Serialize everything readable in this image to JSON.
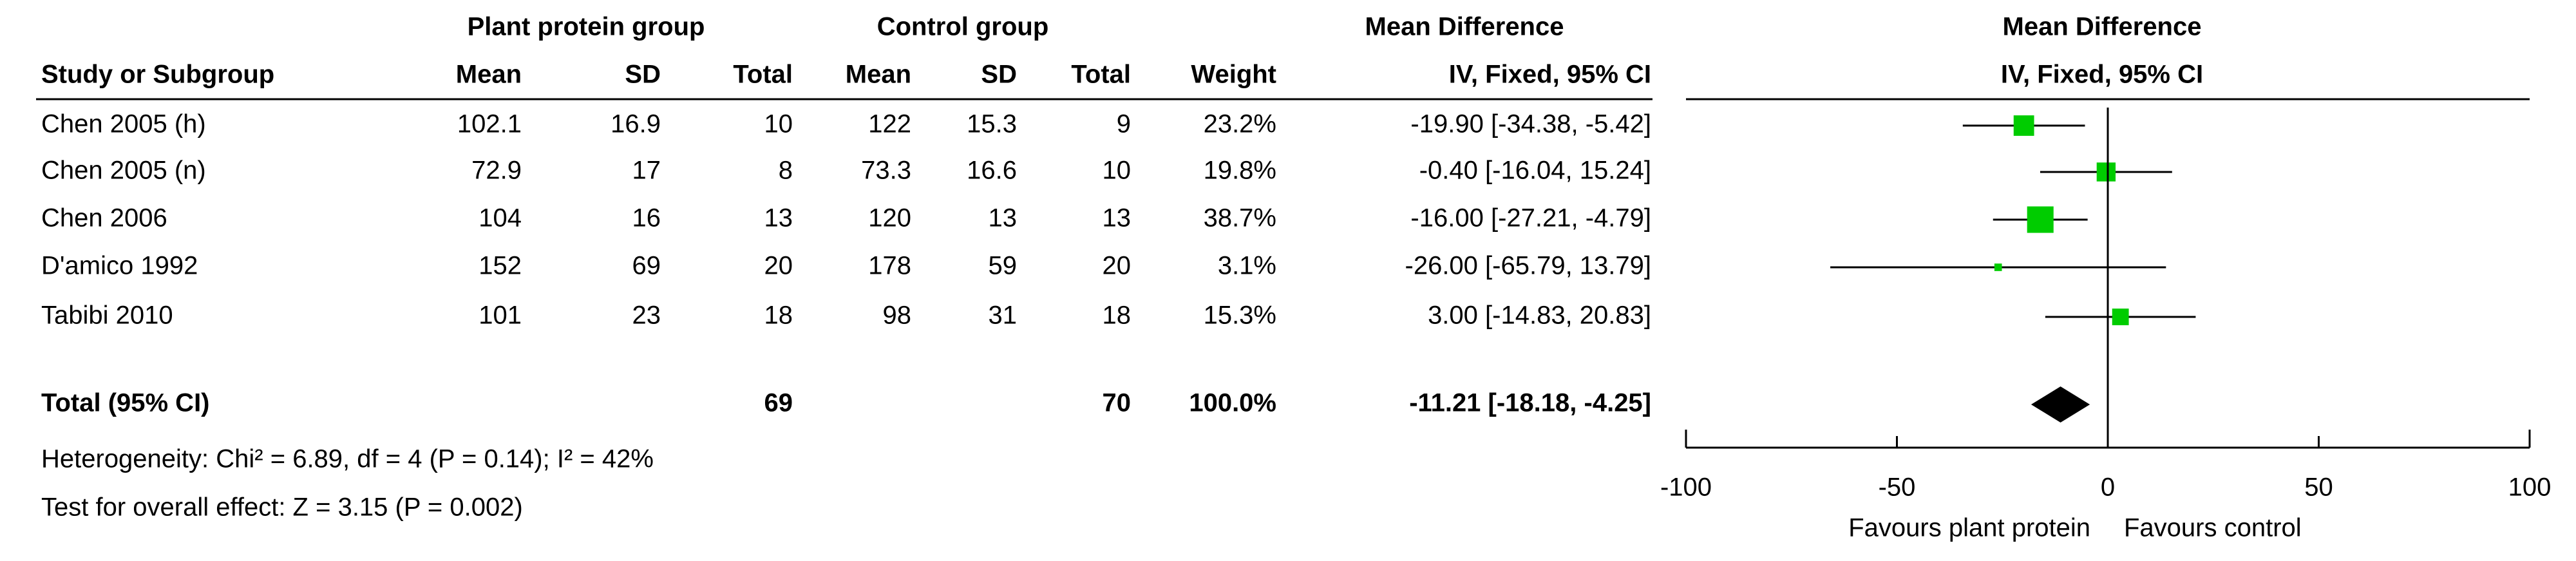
{
  "chart_data": {
    "type": "forest",
    "group_headers": {
      "experimental": "Plant protein group",
      "control": "Control group",
      "table_effect": "Mean Difference",
      "plot_effect": "Mean Difference"
    },
    "column_headers": [
      "Study or Subgroup",
      "Mean",
      "SD",
      "Total",
      "Mean",
      "SD",
      "Total",
      "Weight",
      "IV, Fixed, 95% CI"
    ],
    "plot_method": "IV, Fixed, 95% CI",
    "studies": [
      {
        "name": "Chen 2005 (h)",
        "exp_mean": 102.1,
        "exp_sd": 16.9,
        "exp_total": 10,
        "ctrl_mean": 122,
        "ctrl_sd": 15.3,
        "ctrl_total": 9,
        "weight": 23.2,
        "weight_label": "23.2%",
        "md": -19.9,
        "ci_low": -34.38,
        "ci_high": -5.42,
        "ci_label": "-19.90 [-34.38, -5.42]"
      },
      {
        "name": "Chen 2005 (n)",
        "exp_mean": 72.9,
        "exp_sd": 17,
        "exp_total": 8,
        "ctrl_mean": 73.3,
        "ctrl_sd": 16.6,
        "ctrl_total": 10,
        "weight": 19.8,
        "weight_label": "19.8%",
        "md": -0.4,
        "ci_low": -16.04,
        "ci_high": 15.24,
        "ci_label": "-0.40 [-16.04, 15.24]"
      },
      {
        "name": "Chen 2006",
        "exp_mean": 104,
        "exp_sd": 16,
        "exp_total": 13,
        "ctrl_mean": 120,
        "ctrl_sd": 13,
        "ctrl_total": 13,
        "weight": 38.7,
        "weight_label": "38.7%",
        "md": -16,
        "ci_low": -27.21,
        "ci_high": -4.79,
        "ci_label": "-16.00 [-27.21, -4.79]"
      },
      {
        "name": "D'amico 1992",
        "exp_mean": 152,
        "exp_sd": 69,
        "exp_total": 20,
        "ctrl_mean": 178,
        "ctrl_sd": 59,
        "ctrl_total": 20,
        "weight": 3.1,
        "weight_label": "3.1%",
        "md": -26,
        "ci_low": -65.79,
        "ci_high": 13.79,
        "ci_label": "-26.00 [-65.79, 13.79]"
      },
      {
        "name": "Tabibi 2010",
        "exp_mean": 101,
        "exp_sd": 23,
        "exp_total": 18,
        "ctrl_mean": 98,
        "ctrl_sd": 31,
        "ctrl_total": 18,
        "weight": 15.3,
        "weight_label": "15.3%",
        "md": 3,
        "ci_low": -14.83,
        "ci_high": 20.83,
        "ci_label": "3.00 [-14.83, 20.83]"
      }
    ],
    "total": {
      "name": "Total (95% CI)",
      "exp_total": 69,
      "ctrl_total": 70,
      "weight_label": "100.0%",
      "md": -11.21,
      "ci_low": -18.18,
      "ci_high": -4.25,
      "ci_label": "-11.21 [-18.18, -4.25]"
    },
    "heterogeneity": "Heterogeneity: Chi² = 6.89, df = 4 (P = 0.14); I² = 42%",
    "overall_effect": "Test for overall effect: Z = 3.15 (P = 0.002)",
    "xlim": [
      -100,
      100
    ],
    "xticks": [
      -100,
      -50,
      0,
      50,
      100
    ],
    "favours_left": "Favours plant protein",
    "favours_right": "Favours control",
    "color": "#00cc00"
  }
}
